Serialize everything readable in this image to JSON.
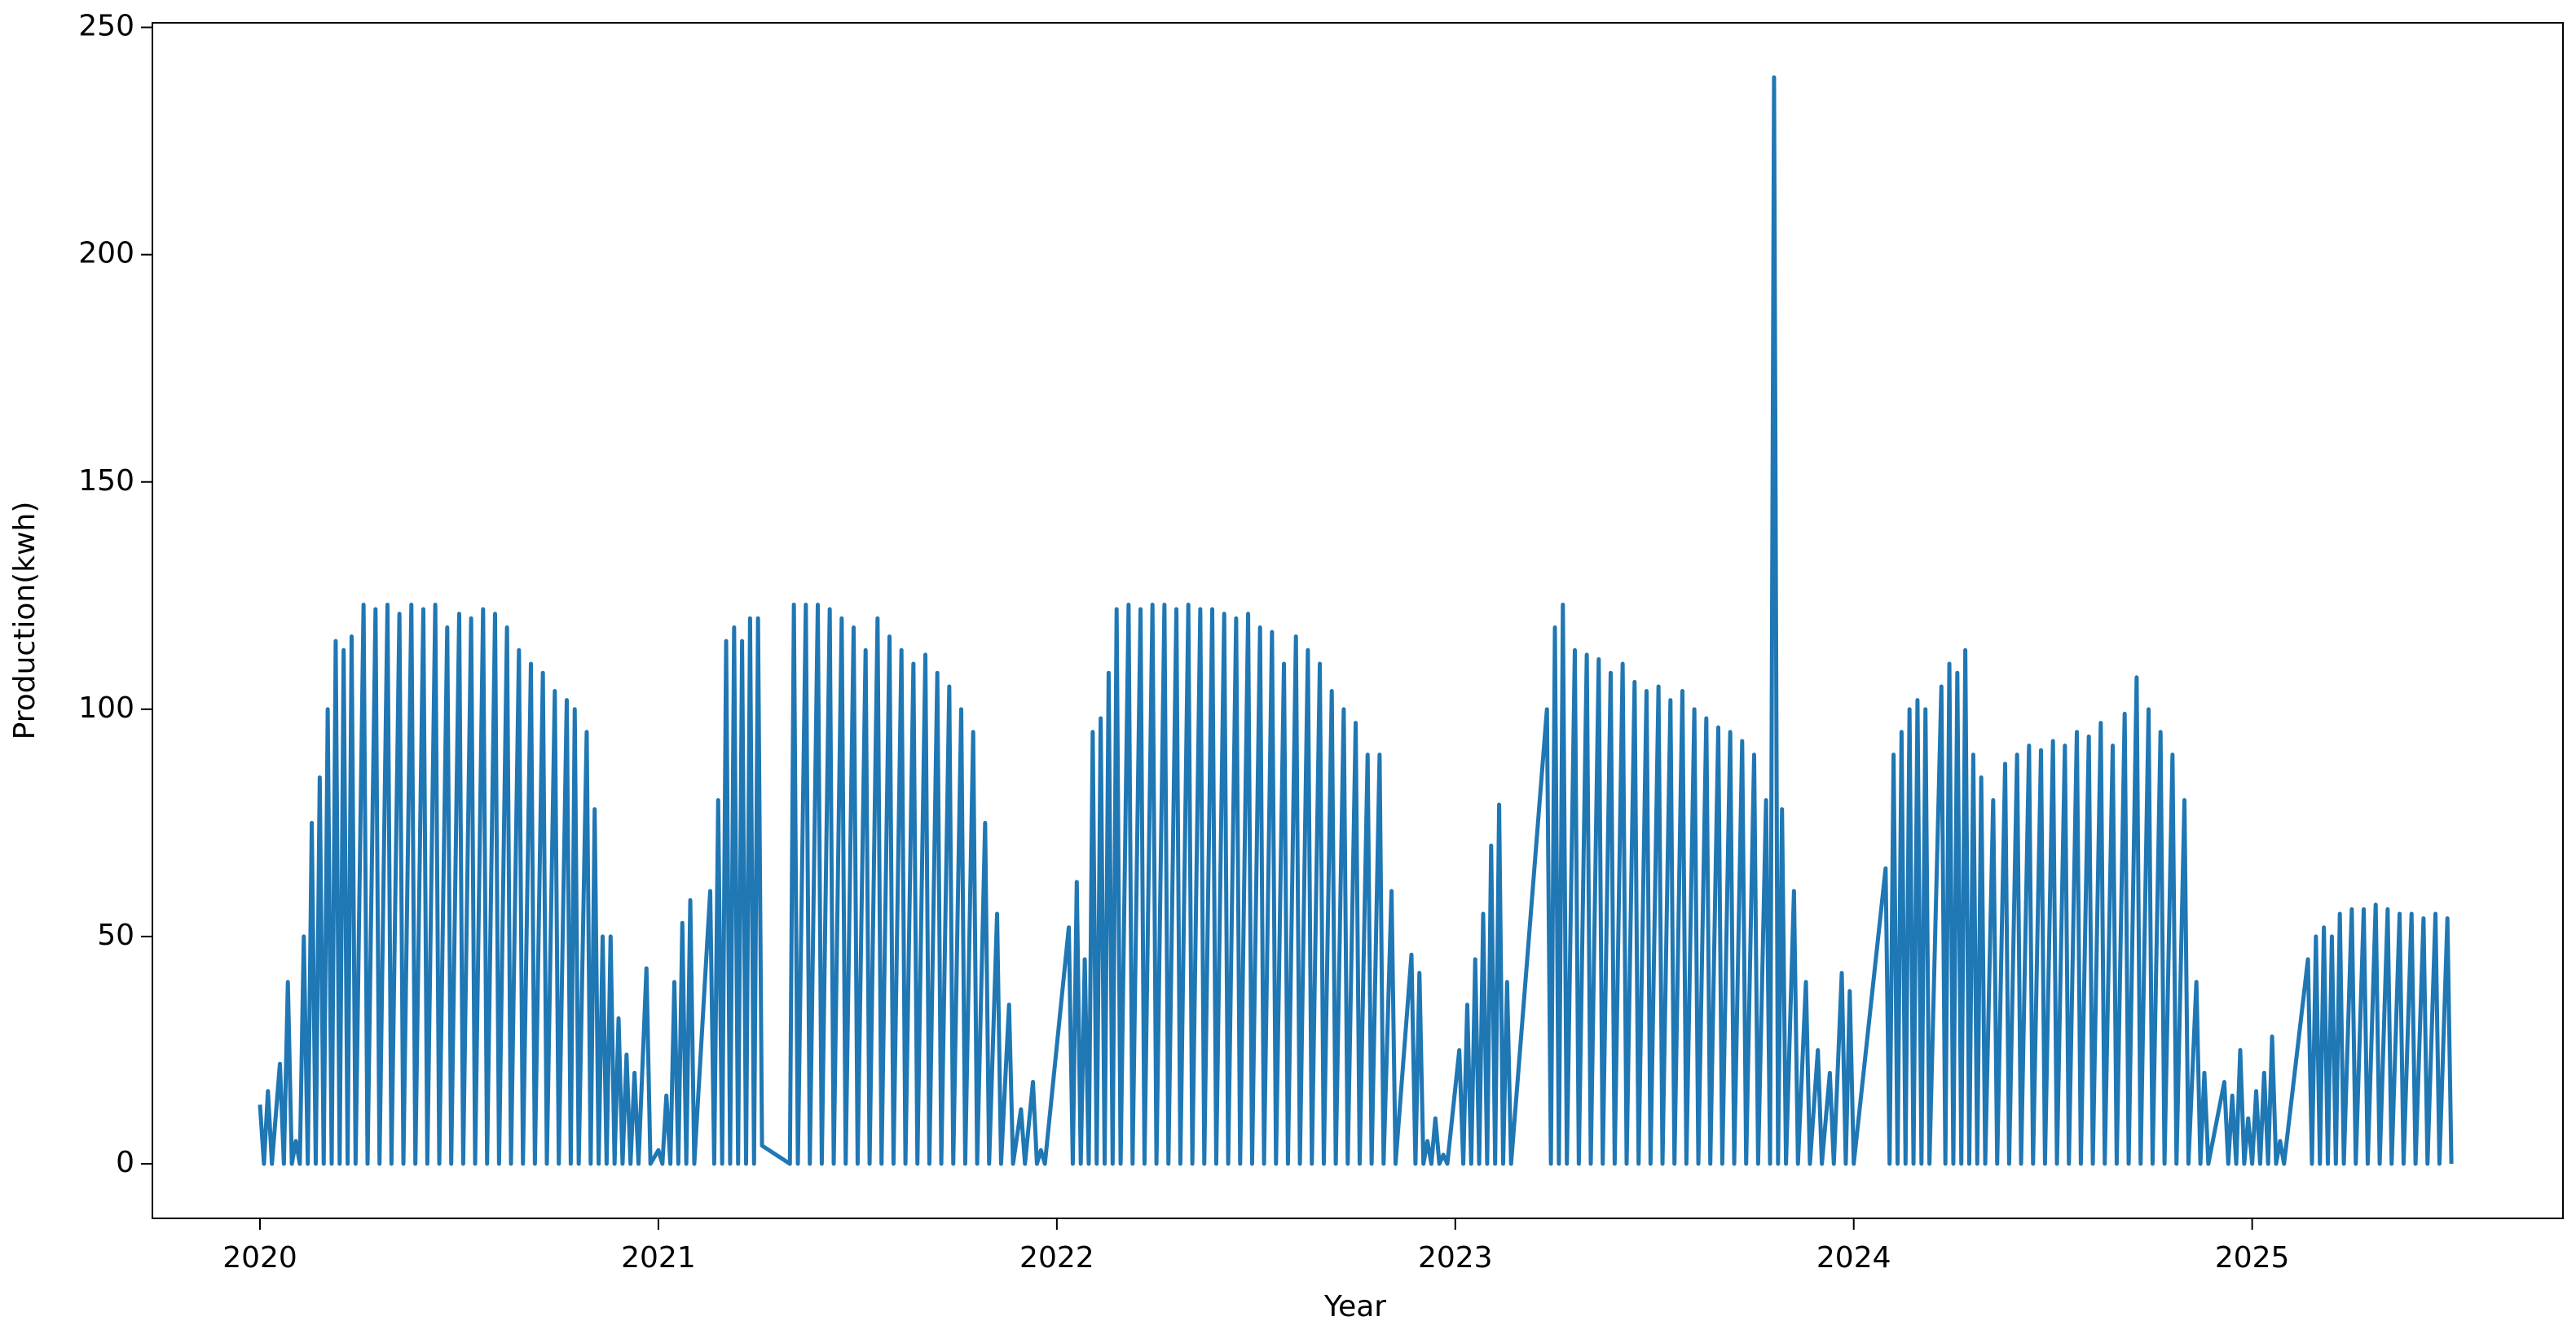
{
  "chart_data": {
    "type": "line",
    "xlabel": "Year",
    "ylabel": "Production(kwh)",
    "color": "#1f77b4",
    "xlim": [
      2019.73,
      2025.78
    ],
    "ylim": [
      -12,
      251
    ],
    "xticks": [
      2020,
      2021,
      2022,
      2023,
      2024,
      2025
    ],
    "yticks": [
      0,
      50,
      100,
      150,
      200,
      250
    ],
    "x": [
      2020.0,
      2020.01,
      2020.02,
      2020.03,
      2020.05,
      2020.06,
      2020.07,
      2020.08,
      2020.09,
      2020.1,
      2020.11,
      2020.12,
      2020.13,
      2020.14,
      2020.15,
      2020.16,
      2020.17,
      2020.18,
      2020.19,
      2020.2,
      2020.21,
      2020.22,
      2020.23,
      2020.24,
      2020.26,
      2020.27,
      2020.29,
      2020.3,
      2020.32,
      2020.33,
      2020.35,
      2020.36,
      2020.38,
      2020.39,
      2020.41,
      2020.42,
      2020.44,
      2020.45,
      2020.47,
      2020.48,
      2020.5,
      2020.51,
      2020.53,
      2020.54,
      2020.56,
      2020.57,
      2020.59,
      2020.6,
      2020.62,
      2020.63,
      2020.65,
      2020.66,
      2020.68,
      2020.69,
      2020.71,
      2020.72,
      2020.74,
      2020.75,
      2020.77,
      2020.78,
      2020.79,
      2020.8,
      2020.82,
      2020.83,
      2020.84,
      2020.85,
      2020.86,
      2020.87,
      2020.88,
      2020.89,
      2020.9,
      2020.91,
      2020.92,
      2020.93,
      2020.94,
      2020.95,
      2020.97,
      2020.98,
      2021.0,
      2021.01,
      2021.02,
      2021.03,
      2021.04,
      2021.05,
      2021.06,
      2021.07,
      2021.08,
      2021.09,
      2021.13,
      2021.14,
      2021.15,
      2021.16,
      2021.17,
      2021.18,
      2021.19,
      2021.2,
      2021.21,
      2021.22,
      2021.23,
      2021.24,
      2021.25,
      2021.26,
      2021.33,
      2021.34,
      2021.35,
      2021.37,
      2021.38,
      2021.4,
      2021.41,
      2021.43,
      2021.44,
      2021.46,
      2021.47,
      2021.49,
      2021.5,
      2021.52,
      2021.53,
      2021.55,
      2021.56,
      2021.58,
      2021.59,
      2021.61,
      2021.62,
      2021.64,
      2021.65,
      2021.67,
      2021.68,
      2021.7,
      2021.71,
      2021.73,
      2021.74,
      2021.76,
      2021.77,
      2021.79,
      2021.8,
      2021.82,
      2021.83,
      2021.85,
      2021.86,
      2021.88,
      2021.89,
      2021.91,
      2021.92,
      2021.94,
      2021.95,
      2021.96,
      2021.97,
      2022.03,
      2022.04,
      2022.05,
      2022.06,
      2022.07,
      2022.08,
      2022.09,
      2022.1,
      2022.11,
      2022.12,
      2022.13,
      2022.14,
      2022.15,
      2022.16,
      2022.18,
      2022.19,
      2022.21,
      2022.22,
      2022.24,
      2022.25,
      2022.27,
      2022.28,
      2022.3,
      2022.31,
      2022.33,
      2022.34,
      2022.36,
      2022.37,
      2022.39,
      2022.4,
      2022.42,
      2022.43,
      2022.45,
      2022.46,
      2022.48,
      2022.49,
      2022.51,
      2022.52,
      2022.54,
      2022.55,
      2022.57,
      2022.58,
      2022.6,
      2022.61,
      2022.63,
      2022.64,
      2022.66,
      2022.67,
      2022.69,
      2022.7,
      2022.72,
      2022.73,
      2022.75,
      2022.76,
      2022.78,
      2022.79,
      2022.81,
      2022.82,
      2022.84,
      2022.85,
      2022.89,
      2022.9,
      2022.91,
      2022.92,
      2022.93,
      2022.94,
      2022.95,
      2022.96,
      2022.97,
      2022.98,
      2023.01,
      2023.02,
      2023.03,
      2023.04,
      2023.05,
      2023.06,
      2023.07,
      2023.08,
      2023.09,
      2023.1,
      2023.11,
      2023.12,
      2023.13,
      2023.14,
      2023.23,
      2023.24,
      2023.25,
      2023.26,
      2023.27,
      2023.28,
      2023.3,
      2023.31,
      2023.33,
      2023.34,
      2023.36,
      2023.37,
      2023.39,
      2023.4,
      2023.42,
      2023.43,
      2023.45,
      2023.46,
      2023.48,
      2023.49,
      2023.51,
      2023.52,
      2023.54,
      2023.55,
      2023.57,
      2023.58,
      2023.6,
      2023.61,
      2023.63,
      2023.64,
      2023.66,
      2023.67,
      2023.69,
      2023.7,
      2023.72,
      2023.73,
      2023.75,
      2023.76,
      2023.78,
      2023.79,
      2023.8,
      2023.81,
      2023.82,
      2023.83,
      2023.85,
      2023.86,
      2023.88,
      2023.89,
      2023.91,
      2023.92,
      2023.94,
      2023.95,
      2023.97,
      2023.98,
      2023.99,
      2024.0,
      2024.08,
      2024.09,
      2024.1,
      2024.11,
      2024.12,
      2024.13,
      2024.14,
      2024.15,
      2024.16,
      2024.17,
      2024.18,
      2024.19,
      2024.22,
      2024.23,
      2024.24,
      2024.25,
      2024.26,
      2024.27,
      2024.28,
      2024.29,
      2024.3,
      2024.31,
      2024.32,
      2024.33,
      2024.35,
      2024.36,
      2024.38,
      2024.39,
      2024.41,
      2024.42,
      2024.44,
      2024.45,
      2024.47,
      2024.48,
      2024.5,
      2024.51,
      2024.53,
      2024.54,
      2024.56,
      2024.57,
      2024.59,
      2024.6,
      2024.62,
      2024.63,
      2024.65,
      2024.66,
      2024.68,
      2024.69,
      2024.71,
      2024.72,
      2024.74,
      2024.75,
      2024.77,
      2024.78,
      2024.8,
      2024.81,
      2024.83,
      2024.84,
      2024.86,
      2024.87,
      2024.88,
      2024.89,
      2024.93,
      2024.94,
      2024.95,
      2024.96,
      2024.97,
      2024.98,
      2024.99,
      2025.0,
      2025.01,
      2025.02,
      2025.03,
      2025.04,
      2025.05,
      2025.06,
      2025.07,
      2025.08,
      2025.14,
      2025.15,
      2025.16,
      2025.17,
      2025.18,
      2025.19,
      2025.2,
      2025.21,
      2025.22,
      2025.23,
      2025.25,
      2025.26,
      2025.28,
      2025.29,
      2025.31,
      2025.32,
      2025.34,
      2025.35,
      2025.37,
      2025.38,
      2025.4,
      2025.41,
      2025.43,
      2025.44,
      2025.46,
      2025.47,
      2025.49,
      2025.5
    ],
    "values": [
      13,
      0,
      16,
      0,
      22,
      0,
      40,
      0,
      5,
      0,
      50,
      0,
      75,
      0,
      85,
      0,
      100,
      0,
      115,
      0,
      113,
      0,
      116,
      0,
      123,
      0,
      122,
      0,
      123,
      0,
      121,
      0,
      123,
      0,
      122,
      0,
      123,
      0,
      118,
      0,
      121,
      0,
      120,
      0,
      122,
      0,
      121,
      0,
      118,
      0,
      113,
      0,
      110,
      0,
      108,
      0,
      104,
      0,
      102,
      0,
      100,
      0,
      95,
      0,
      78,
      0,
      50,
      0,
      50,
      0,
      32,
      0,
      24,
      0,
      20,
      0,
      43,
      0,
      3,
      0,
      15,
      0,
      40,
      0,
      53,
      0,
      58,
      0,
      60,
      0,
      80,
      0,
      115,
      0,
      118,
      0,
      115,
      0,
      120,
      0,
      120,
      4,
      0,
      123,
      0,
      123,
      0,
      123,
      0,
      122,
      0,
      120,
      0,
      118,
      0,
      113,
      0,
      120,
      0,
      116,
      0,
      113,
      0,
      110,
      0,
      112,
      0,
      108,
      0,
      105,
      0,
      100,
      0,
      95,
      0,
      75,
      0,
      55,
      0,
      35,
      0,
      12,
      0,
      18,
      0,
      3,
      0,
      52,
      0,
      62,
      0,
      45,
      0,
      95,
      0,
      98,
      0,
      108,
      0,
      122,
      0,
      123,
      0,
      122,
      0,
      123,
      0,
      123,
      0,
      122,
      0,
      123,
      0,
      122,
      0,
      122,
      0,
      121,
      0,
      120,
      0,
      121,
      0,
      118,
      0,
      117,
      0,
      110,
      0,
      116,
      0,
      113,
      0,
      110,
      0,
      104,
      0,
      100,
      0,
      97,
      0,
      90,
      0,
      90,
      0,
      60,
      0,
      46,
      0,
      42,
      0,
      5,
      0,
      10,
      0,
      2,
      0,
      25,
      0,
      35,
      0,
      45,
      0,
      55,
      0,
      70,
      0,
      79,
      0,
      40,
      0,
      100,
      0,
      118,
      0,
      123,
      0,
      113,
      0,
      112,
      0,
      111,
      0,
      108,
      0,
      110,
      0,
      106,
      0,
      104,
      0,
      105,
      0,
      102,
      0,
      104,
      0,
      100,
      0,
      98,
      0,
      96,
      0,
      95,
      0,
      93,
      0,
      90,
      0,
      80,
      0,
      239,
      0,
      78,
      0,
      60,
      0,
      40,
      0,
      25,
      0,
      20,
      0,
      42,
      0,
      38,
      0,
      65,
      0,
      90,
      0,
      95,
      0,
      100,
      0,
      102,
      0,
      100,
      0,
      105,
      0,
      110,
      0,
      108,
      0,
      113,
      0,
      90,
      0,
      85,
      0,
      80,
      0,
      88,
      0,
      90,
      0,
      92,
      0,
      91,
      0,
      93,
      0,
      92,
      0,
      95,
      0,
      94,
      0,
      97,
      0,
      92,
      0,
      99,
      0,
      107,
      0,
      100,
      0,
      95,
      0,
      90,
      0,
      80,
      0,
      40,
      0,
      20,
      0,
      18,
      0,
      15,
      0,
      25,
      0,
      10,
      0,
      16,
      0,
      20,
      0,
      28,
      0,
      5,
      0,
      45,
      0,
      50,
      0,
      52,
      0,
      50,
      0,
      55,
      0,
      56,
      0,
      56,
      0,
      57,
      0,
      56,
      0,
      55,
      0,
      55,
      0,
      54,
      0,
      55,
      0,
      54,
      0
    ]
  }
}
